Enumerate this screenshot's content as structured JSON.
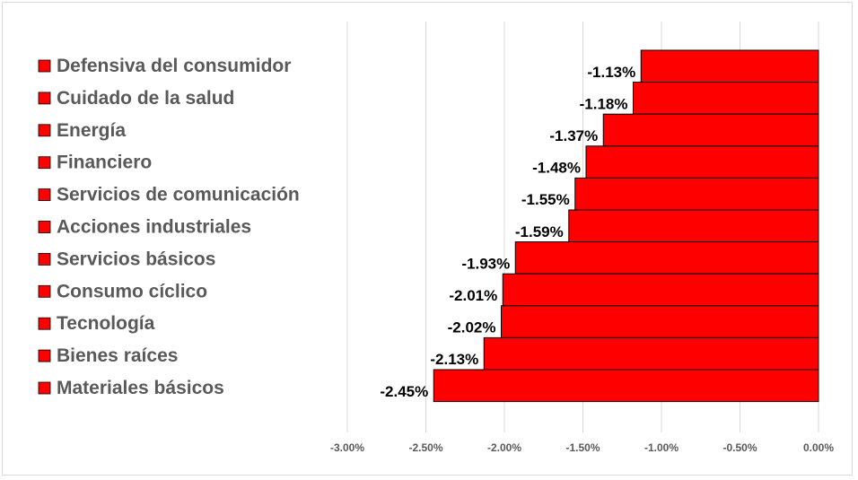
{
  "chart_data": {
    "type": "bar",
    "orientation": "horizontal",
    "categories": [
      "Defensiva del consumidor",
      "Cuidado de la salud",
      "Energía",
      "Financiero",
      "Servicios de comunicación",
      "Acciones industriales",
      "Servicios básicos",
      "Consumo cíclico",
      "Tecnología",
      "Bienes raíces",
      "Materiales básicos"
    ],
    "values": [
      -1.13,
      -1.18,
      -1.37,
      -1.48,
      -1.55,
      -1.59,
      -1.93,
      -2.01,
      -2.02,
      -2.13,
      -2.45
    ],
    "data_labels": [
      "-1.13%",
      "-1.18%",
      "-1.37%",
      "-1.48%",
      "-1.55%",
      "-1.59%",
      "-1.93%",
      "-2.01%",
      "-2.02%",
      "-2.13%",
      "-2.45%"
    ],
    "x_ticks": [
      "-3.00%",
      "-2.50%",
      "-2.00%",
      "-1.50%",
      "-1.00%",
      "-0.50%",
      "0.00%"
    ],
    "xlim": [
      -3.0,
      0.0
    ],
    "grid": "vertical",
    "legend_placement": "left",
    "colors": {
      "bar": "#ff0000",
      "bar_edge": "#000000",
      "grid": "#d9d9d9"
    }
  }
}
